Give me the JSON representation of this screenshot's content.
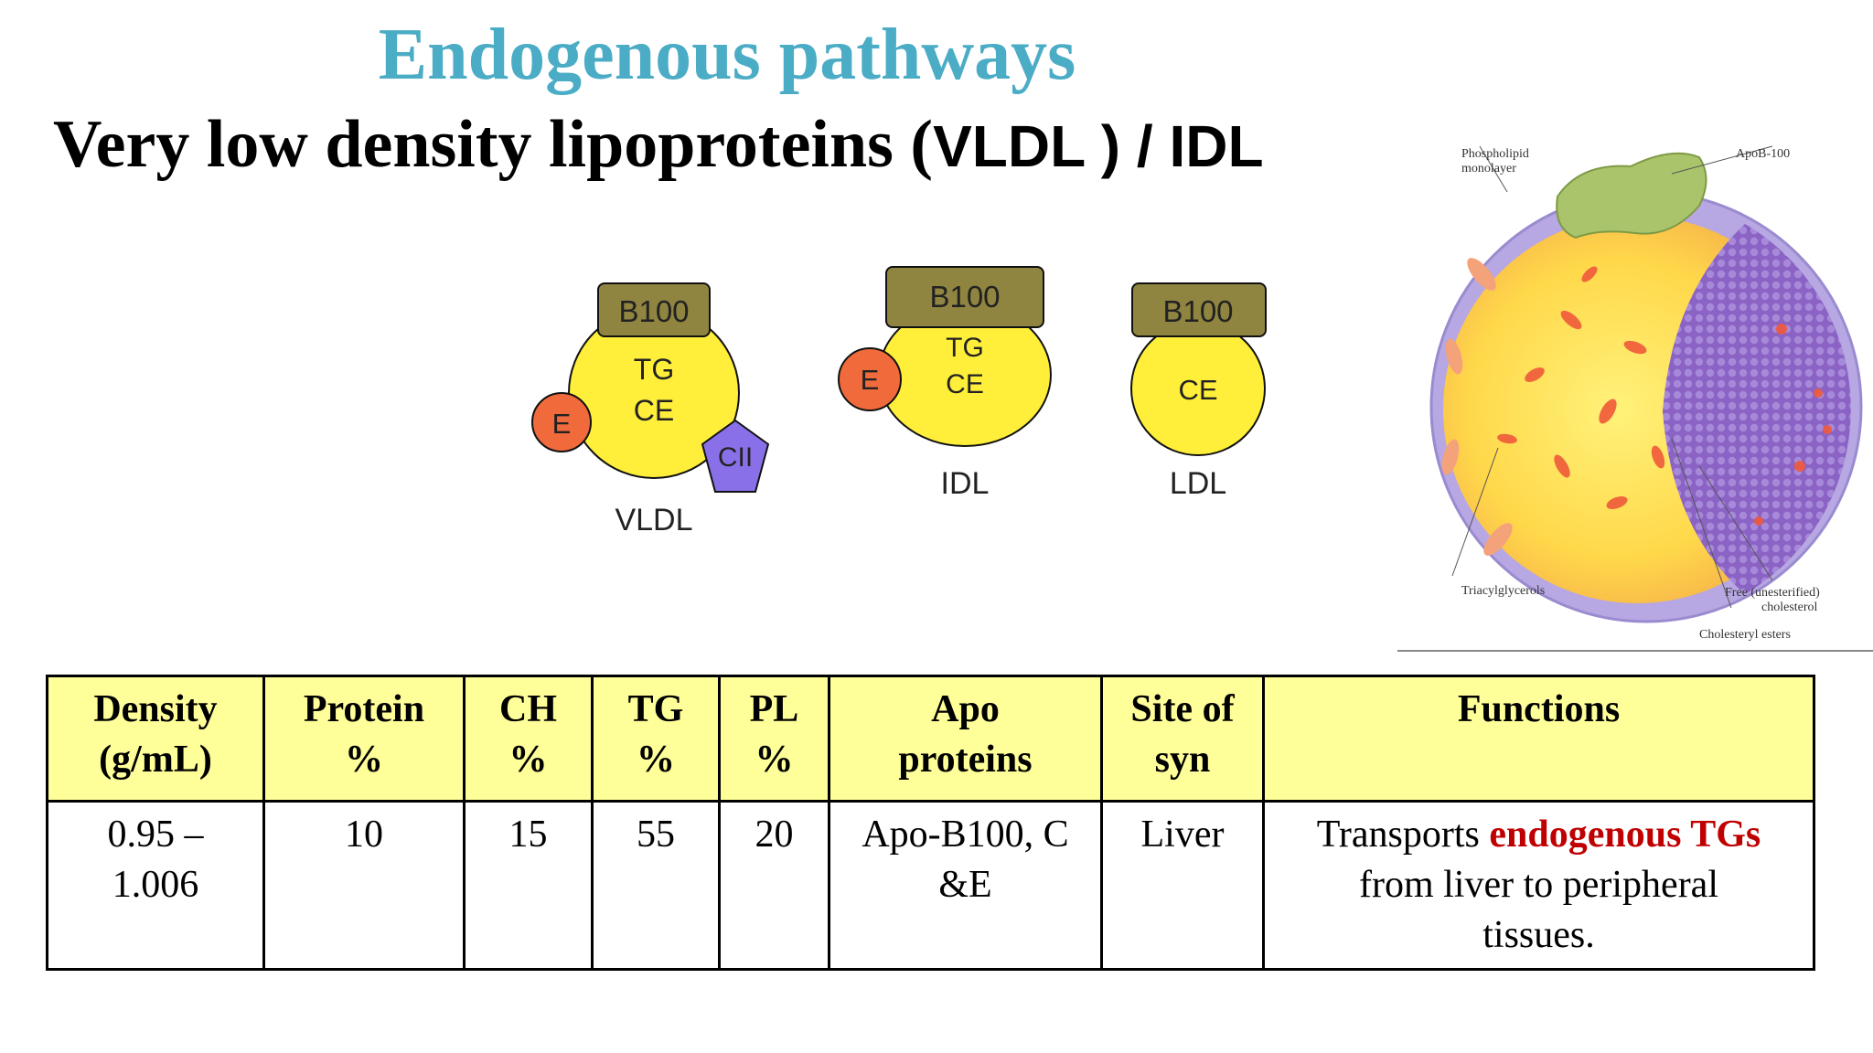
{
  "title": "Endogenous pathways",
  "subtitle": {
    "main": "Very low density lipoproteins (",
    "abbr": "VLDL ) / IDL"
  },
  "diagram": {
    "vldl": {
      "name": "VLDL",
      "apo_top": "B100",
      "core_line1": "TG",
      "core_line2": "CE",
      "apo_e": "E",
      "apo_c": "CII"
    },
    "idl": {
      "name": "IDL",
      "apo_top": "B100",
      "core_line1": "TG",
      "core_line2": "CE",
      "apo_e": "E"
    },
    "ldl": {
      "name": "LDL",
      "apo_top": "B100",
      "core": "CE"
    }
  },
  "structure_image": {
    "labels": {
      "phospholipid": "Phospholipid",
      "monolayer": "monolayer",
      "apob": "ApoB-100",
      "triacylglycerols": "Triacylglycerols",
      "free": "Free (unesterified)",
      "cholesterol": "cholesterol",
      "cholesteryl_esters": "Cholesteryl esters"
    }
  },
  "table": {
    "headers": [
      {
        "l1": "Density",
        "l2": "(g/mL)"
      },
      {
        "l1": "Protein",
        "l2": "%"
      },
      {
        "l1": "CH",
        "l2": "%"
      },
      {
        "l1": "TG",
        "l2": "%"
      },
      {
        "l1": "PL",
        "l2": "%"
      },
      {
        "l1": "Apo",
        "l2": "proteins"
      },
      {
        "l1": "Site of",
        "l2": "syn"
      },
      {
        "l1": "Functions",
        "l2": ""
      }
    ],
    "row": {
      "density_l1": "0.95 –",
      "density_l2": "1.006",
      "protein": "10",
      "ch": "15",
      "tg": "55",
      "pl": "20",
      "apo_l1": "Apo-B100, C",
      "apo_l2": "&E",
      "site": "Liver",
      "func_pre": "Transports ",
      "func_hl": "endogenous TGs",
      "func_l2": "from liver to peripheral",
      "func_l3": "tissues."
    }
  },
  "colors": {
    "title": "#4bacc6",
    "header_bg": "#ffff99",
    "highlight": "#c00000",
    "lipoprotein_core": "#ffef3a",
    "apo_b100": "#8f8440",
    "apo_e": "#f06a3c",
    "apo_cii": "#8a70e8",
    "surface_purple": "#8b63c4",
    "apob_green": "#a9c46a"
  }
}
